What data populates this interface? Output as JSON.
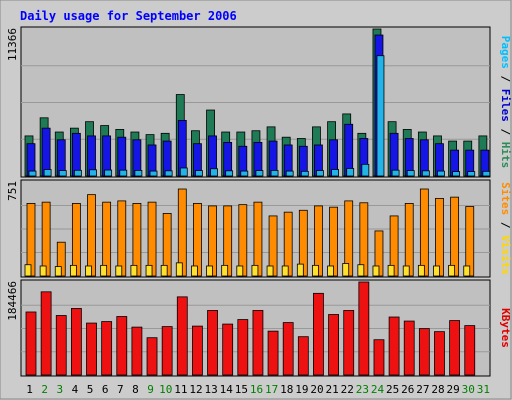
{
  "chart_data": [
    {
      "type": "bar",
      "panel": "hits-files-pages",
      "title": "Daily usage for September 2006",
      "categories": [
        "1",
        "2",
        "3",
        "4",
        "5",
        "6",
        "7",
        "8",
        "9",
        "10",
        "11",
        "12",
        "13",
        "14",
        "15",
        "16",
        "17",
        "18",
        "19",
        "20",
        "21",
        "22",
        "23",
        "24",
        "25",
        "26",
        "27",
        "28",
        "29",
        "30",
        "31"
      ],
      "weekend_days": [
        "2",
        "3",
        "9",
        "10",
        "16",
        "17",
        "23",
        "24",
        "30",
        "31"
      ],
      "ymax_label": "11366",
      "ylim": [
        0,
        11366
      ],
      "grid": true,
      "axis_label_parts": [
        {
          "text": "Pages",
          "color": "#00bfff"
        },
        {
          "text": " / ",
          "color": "#000000"
        },
        {
          "text": "Files",
          "color": "#0000cc"
        },
        {
          "text": " / ",
          "color": "#000000"
        },
        {
          "text": "Hits",
          "color": "#2e8b57"
        }
      ],
      "series": [
        {
          "name": "Hits",
          "color": "#1f7a56",
          "values": [
            3100,
            4500,
            3400,
            3700,
            4200,
            3900,
            3600,
            3400,
            3200,
            3300,
            6300,
            3500,
            5100,
            3400,
            3400,
            3500,
            3800,
            3000,
            2900,
            3800,
            4200,
            4800,
            3300,
            11366,
            4200,
            3600,
            3400,
            3100,
            2700,
            2700,
            3100
          ]
        },
        {
          "name": "Files",
          "color": "#1515e6",
          "values": [
            2500,
            3700,
            2800,
            3300,
            3100,
            3100,
            3000,
            2800,
            2400,
            2700,
            4300,
            2500,
            3100,
            2600,
            2300,
            2600,
            2700,
            2400,
            2300,
            2400,
            2800,
            4000,
            2900,
            10900,
            3300,
            2900,
            2800,
            2500,
            2000,
            2000,
            2000
          ]
        },
        {
          "name": "Pages",
          "color": "#22b4e8",
          "values": [
            380,
            500,
            420,
            440,
            480,
            460,
            450,
            430,
            380,
            400,
            620,
            420,
            560,
            400,
            380,
            420,
            430,
            380,
            360,
            420,
            500,
            580,
            900,
            9300,
            450,
            420,
            400,
            380,
            340,
            340,
            360
          ]
        }
      ]
    },
    {
      "type": "bar",
      "panel": "visits-sites",
      "ymax_label": "751",
      "ylim": [
        0,
        751
      ],
      "grid": true,
      "axis_label_parts": [
        {
          "text": "Sites",
          "color": "#ff8c00"
        },
        {
          "text": " / ",
          "color": "#000000"
        },
        {
          "text": "Visits",
          "color": "#ffd700"
        }
      ],
      "series": [
        {
          "name": "Visits",
          "color": "#ff8c00",
          "values": [
            580,
            590,
            270,
            580,
            650,
            590,
            600,
            580,
            590,
            500,
            695,
            580,
            560,
            560,
            570,
            590,
            480,
            510,
            525,
            560,
            550,
            600,
            585,
            360,
            480,
            580,
            695,
            620,
            630,
            555
          ]
        },
        {
          "name": "Sites",
          "color": "#ffe02e",
          "values": [
            90,
            80,
            75,
            85,
            80,
            85,
            80,
            85,
            85,
            85,
            105,
            80,
            80,
            85,
            80,
            85,
            80,
            80,
            95,
            85,
            80,
            100,
            90,
            80,
            85,
            80,
            85,
            80,
            85,
            80
          ]
        }
      ]
    },
    {
      "type": "bar",
      "panel": "kbytes",
      "ymax_label": "184466",
      "ylim": [
        0,
        184466
      ],
      "grid": true,
      "axis_label_parts": [
        {
          "text": "KBytes",
          "color": "#e00000"
        }
      ],
      "series": [
        {
          "name": "KBytes",
          "color": "#ee1111",
          "values": [
            125000,
            165000,
            118000,
            132000,
            103000,
            106000,
            116000,
            95000,
            74000,
            96000,
            155000,
            97000,
            128000,
            101000,
            110000,
            128000,
            87000,
            104000,
            76000,
            162000,
            120000,
            128000,
            184466,
            70000,
            115000,
            107000,
            92000,
            86000,
            108000,
            98000
          ]
        }
      ]
    }
  ]
}
